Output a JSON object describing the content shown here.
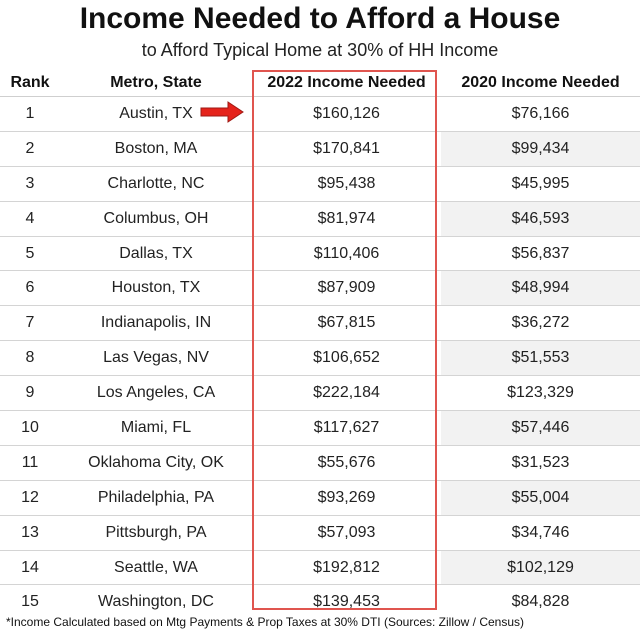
{
  "header": {
    "title": "Income Needed to Afford a House",
    "subtitle": "to Afford Typical Home at 30% of HH Income"
  },
  "footnote": "*Income Calculated based on Mtg Payments & Prop Taxes at 30% DTI (Sources: Zillow / Census)",
  "colors": {
    "highlight_border": "#e0554f",
    "arrow_fill": "#e5231b",
    "row_shade": "#f2f2f2"
  },
  "chart_data": {
    "type": "table",
    "title": "Income Needed to Afford a House",
    "subtitle": "to Afford Typical Home at 30% of HH Income",
    "columns": [
      "Rank",
      "Metro, State",
      "2022 Income Needed",
      "2020 Income Needed"
    ],
    "rows": [
      [
        "1",
        "Austin, TX",
        "$160,126",
        "$76,166"
      ],
      [
        "2",
        "Boston, MA",
        "$170,841",
        "$99,434"
      ],
      [
        "3",
        "Charlotte, NC",
        "$95,438",
        "$45,995"
      ],
      [
        "4",
        "Columbus, OH",
        "$81,974",
        "$46,593"
      ],
      [
        "5",
        "Dallas, TX",
        "$110,406",
        "$56,837"
      ],
      [
        "6",
        "Houston, TX",
        "$87,909",
        "$48,994"
      ],
      [
        "7",
        "Indianapolis, IN",
        "$67,815",
        "$36,272"
      ],
      [
        "8",
        "Las Vegas, NV",
        "$106,652",
        "$51,553"
      ],
      [
        "9",
        "Los Angeles, CA",
        "$222,184",
        "$123,329"
      ],
      [
        "10",
        "Miami, FL",
        "$117,627",
        "$57,446"
      ],
      [
        "11",
        "Oklahoma City, OK",
        "$55,676",
        "$31,523"
      ],
      [
        "12",
        "Philadelphia, PA",
        "$93,269",
        "$55,004"
      ],
      [
        "13",
        "Pittsburgh, PA",
        "$57,093",
        "$34,746"
      ],
      [
        "14",
        "Seattle, WA",
        "$192,812",
        "$102,129"
      ],
      [
        "15",
        "Washington, DC",
        "$139,453",
        "$84,828"
      ]
    ],
    "highlighted_column": "2022 Income Needed",
    "pointed_row": "Austin, TX"
  }
}
